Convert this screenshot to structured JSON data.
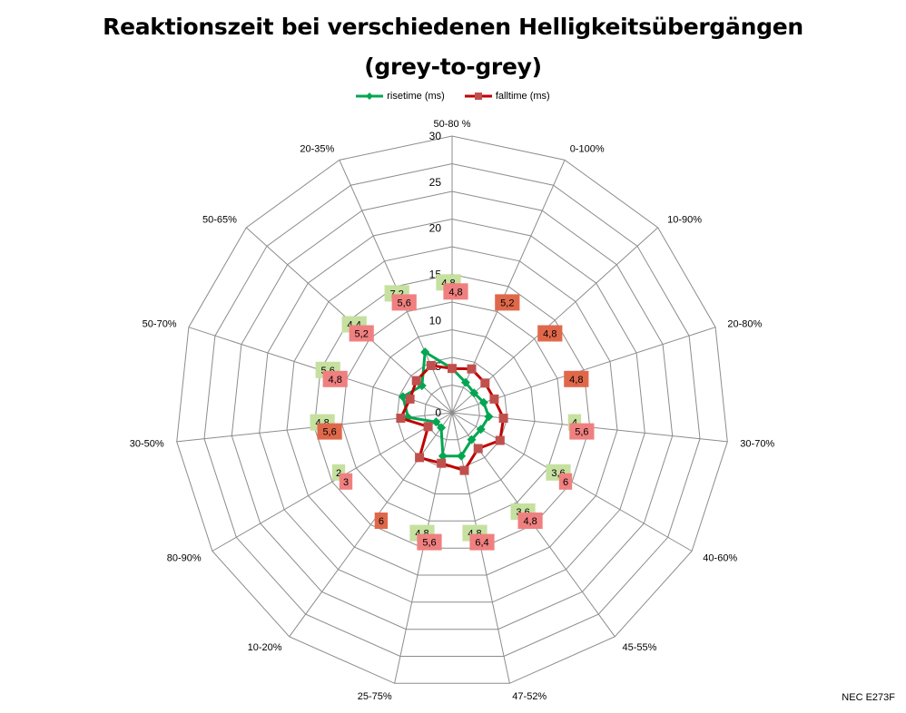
{
  "title_line1": "Reaktionszeit bei verschiedenen Helligkeitsübergängen",
  "title_line2": "(grey-to-grey)",
  "credit": "NEC E273F",
  "colors": {
    "rise": "#00a651",
    "fall": "#c00000",
    "rise_label_bg": "#c6e0a0",
    "fall_label_bg": "#f08080",
    "fall_label_bg_dark": "#e0684a"
  },
  "chart_data": {
    "type": "radar",
    "categories": [
      "50-80 %",
      "0-100%",
      "10-90%",
      "20-80%",
      "30-70%",
      "40-60%",
      "45-55%",
      "47-52%",
      "25-75%",
      "10-20%",
      "80-90%",
      "30-50%",
      "50-70%",
      "50-65%",
      "20-35%"
    ],
    "series": [
      {
        "name": "risetime (ms)",
        "values": [
          4.8,
          3.6,
          3.2,
          3.6,
          4.0,
          3.6,
          3.6,
          4.8,
          4.8,
          2.0,
          2.0,
          4.8,
          5.6,
          4.4,
          7.2
        ]
      },
      {
        "name": "falltime (ms)",
        "values": [
          4.8,
          5.2,
          4.8,
          4.8,
          5.6,
          6.0,
          4.8,
          6.4,
          5.6,
          6.0,
          3.0,
          5.6,
          4.8,
          5.2,
          5.6
        ]
      }
    ],
    "rise_labels": [
      "4,8",
      "",
      "",
      "",
      "4",
      "3,6",
      "3,6",
      "4,8",
      "4,8",
      "",
      "2",
      "4,8",
      "5,6",
      "4,4",
      "7,2"
    ],
    "fall_labels": [
      "4,8",
      "5,2",
      "4,8",
      "4,8",
      "5,6",
      "6",
      "4,8",
      "6,4",
      "5,6",
      "6",
      "3",
      "5,6",
      "4,8",
      "5,2",
      "5,6"
    ],
    "rmin": 0,
    "rmax": 30,
    "ticks": [
      "0",
      "5",
      "10",
      "15",
      "20",
      "25",
      "30"
    ],
    "grid": true,
    "legend_position": "top"
  }
}
